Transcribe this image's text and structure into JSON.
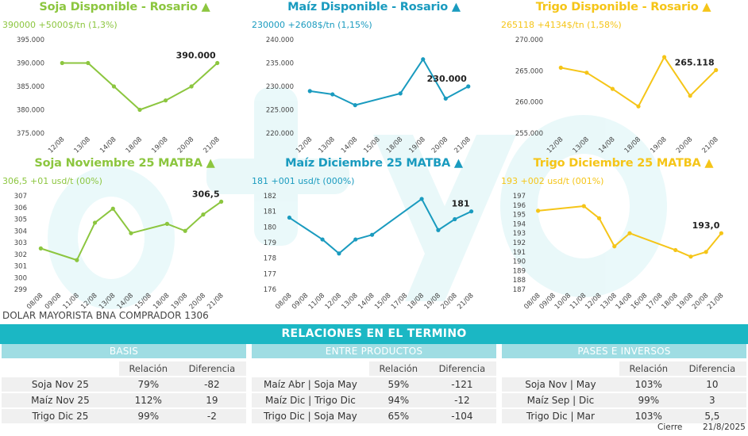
{
  "colors": {
    "soja": "#8cc63f",
    "maiz": "#1a9bbf",
    "trigo": "#f5c518",
    "accent": "#1bb7c4",
    "header_light": "#9fdde3"
  },
  "panels": [
    {
      "title": "Soja Disponible - Rosario ▲",
      "subtitle": "390000 +5000$/tn (1,3%)",
      "last_label": "390.000",
      "color": "#8cc63f"
    },
    {
      "title": "Maíz Disponible - Rosario ▲",
      "subtitle": "230000 +2608$/tn (1,15%)",
      "last_label": "230.000",
      "color": "#1a9bbf"
    },
    {
      "title": "Trigo Disponible - Rosario ▲",
      "subtitle": "265118 +4134$/tn (1,58%)",
      "last_label": "265.118",
      "color": "#f5c518"
    },
    {
      "title": "Soja Noviembre 25 MATBA ▲",
      "subtitle": "306,5 +01 usd/t (00%)",
      "last_label": "306,5",
      "color": "#8cc63f"
    },
    {
      "title": "Maíz Diciembre 25 MATBA ▲",
      "subtitle": "181 +001 usd/t (000%)",
      "last_label": "181",
      "color": "#1a9bbf"
    },
    {
      "title": "Trigo Diciembre 25 MATBA ▲",
      "subtitle": "193 +002 usd/t (001%)",
      "last_label": "193,0",
      "color": "#f5c518"
    }
  ],
  "chart_data": [
    {
      "type": "line",
      "title": "Soja Disponible - Rosario",
      "x": [
        "12/08",
        "13/08",
        "14/08",
        "18/08",
        "19/08",
        "20/08",
        "21/08"
      ],
      "y": [
        390000,
        390000,
        385000,
        380000,
        382000,
        385000,
        390000
      ],
      "y_ticks": [
        "375.000",
        "380.000",
        "385.000",
        "390.000",
        "395.000"
      ],
      "ylim": [
        375000,
        395000
      ]
    },
    {
      "type": "line",
      "title": "Maíz Disponible - Rosario",
      "x": [
        "12/08",
        "13/08",
        "14/08",
        "15/08",
        "18/08",
        "19/08",
        "20/08",
        "21/08"
      ],
      "y": [
        229000,
        228300,
        226000,
        null,
        228500,
        235800,
        227400,
        230000
      ],
      "y_ticks": [
        "220.000",
        "225.000",
        "230.000",
        "235.000",
        "240.000"
      ],
      "ylim": [
        220000,
        240000
      ]
    },
    {
      "type": "line",
      "title": "Trigo Disponible - Rosario",
      "x": [
        "12/08",
        "13/08",
        "14/08",
        "18/08",
        "19/08",
        "20/08",
        "21/08"
      ],
      "y": [
        265500,
        264700,
        262100,
        259300,
        267200,
        261000,
        265118
      ],
      "y_ticks": [
        "255.000",
        "260.000",
        "265.000",
        "270.000"
      ],
      "ylim": [
        255000,
        270000
      ]
    },
    {
      "type": "line",
      "title": "Soja Noviembre 25 MATBA",
      "x": [
        "08/08",
        "09/08",
        "11/08",
        "12/08",
        "13/08",
        "14/08",
        "15/08",
        "18/08",
        "19/08",
        "20/08",
        "21/08"
      ],
      "y": [
        302.5,
        null,
        301.5,
        304.7,
        305.9,
        303.8,
        null,
        304.6,
        304.0,
        305.4,
        306.5
      ],
      "y_ticks": [
        "299",
        "300",
        "301",
        "302",
        "303",
        "304",
        "305",
        "306",
        "307"
      ],
      "ylim": [
        299,
        307
      ]
    },
    {
      "type": "line",
      "title": "Maíz Diciembre 25 MATBA",
      "x": [
        "08/08",
        "09/08",
        "11/08",
        "12/08",
        "13/08",
        "14/08",
        "15/08",
        "17/08",
        "18/08",
        "19/08",
        "20/08",
        "21/08"
      ],
      "y": [
        180.6,
        null,
        179.2,
        178.3,
        179.2,
        179.5,
        null,
        null,
        181.8,
        179.8,
        180.5,
        181.0
      ],
      "y_ticks": [
        "176",
        "177",
        "178",
        "179",
        "180",
        "181",
        "182"
      ],
      "ylim": [
        176,
        182
      ]
    },
    {
      "type": "line",
      "title": "Trigo Diciembre 25 MATBA",
      "x": [
        "08/08",
        "09/08",
        "10/08",
        "11/08",
        "12/08",
        "13/08",
        "14/08",
        "16/08",
        "17/08",
        "18/08",
        "19/08",
        "20/08",
        "21/08"
      ],
      "y": [
        195.4,
        null,
        null,
        195.9,
        194.6,
        191.6,
        193.0,
        null,
        null,
        191.2,
        190.5,
        191.0,
        193.0
      ],
      "y_ticks": [
        "187",
        "188",
        "189",
        "190",
        "191",
        "192",
        "193",
        "194",
        "195",
        "196",
        "197"
      ],
      "ylim": [
        187,
        197
      ]
    }
  ],
  "dolar": "DOLAR MAYORISTA BNA COMPRADOR 1306",
  "relaciones": {
    "title": "RELACIONES EN EL TERMINO",
    "col_relacion": "Relación",
    "col_diferencia": "Diferencia",
    "basis": {
      "header": "BASIS",
      "rows": [
        {
          "name": "Soja Nov 25",
          "relacion": "79%",
          "diferencia": "-82"
        },
        {
          "name": "Maíz Nov 25",
          "relacion": "112%",
          "diferencia": "19"
        },
        {
          "name": "Trigo Dic 25",
          "relacion": "99%",
          "diferencia": "-2"
        }
      ]
    },
    "entre": {
      "header": "ENTRE PRODUCTOS",
      "rows": [
        {
          "name": "Maíz Abr | Soja May",
          "relacion": "59%",
          "diferencia": "-121"
        },
        {
          "name": "Maíz Dic | Trigo Dic",
          "relacion": "94%",
          "diferencia": "-12"
        },
        {
          "name": "Trigo Dic | Soja May",
          "relacion": "65%",
          "diferencia": "-104"
        }
      ]
    },
    "pases": {
      "header": "PASES E INVERSOS",
      "rows": [
        {
          "name": "Soja Nov | May",
          "relacion": "103%",
          "diferencia": "10"
        },
        {
          "name": "Maíz Sep | Dic",
          "relacion": "99%",
          "diferencia": "3"
        },
        {
          "name": "Trigo Dic | Mar",
          "relacion": "103%",
          "diferencia": "5,5"
        }
      ]
    }
  },
  "footer": {
    "cierre_label": "Cierre",
    "date": "21/8/2025"
  }
}
